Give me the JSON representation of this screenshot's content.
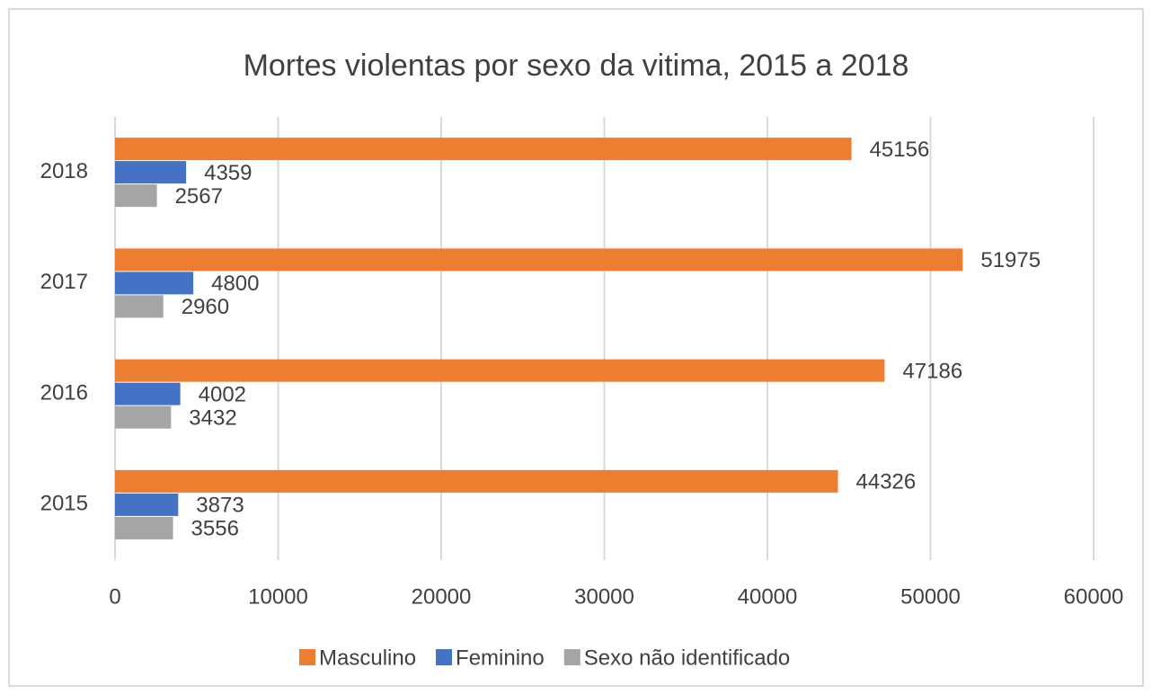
{
  "chart_data": {
    "type": "bar",
    "orientation": "horizontal",
    "title": "Mortes violentas por sexo da vitima, 2015 a 2018",
    "categories": [
      "2015",
      "2016",
      "2017",
      "2018"
    ],
    "series": [
      {
        "name": "Masculino",
        "color": "#ED7D31",
        "values": [
          44326,
          47186,
          51975,
          45156
        ]
      },
      {
        "name": "Feminino",
        "color": "#4472C4",
        "values": [
          3873,
          4002,
          4800,
          4359
        ]
      },
      {
        "name": "Sexo não identificado",
        "color": "#A5A5A5",
        "values": [
          3556,
          3432,
          2960,
          2567
        ]
      }
    ],
    "xlim": [
      0,
      60000
    ],
    "xticks": [
      0,
      10000,
      20000,
      30000,
      40000,
      50000,
      60000
    ],
    "grid": true,
    "legend": "bottom"
  }
}
